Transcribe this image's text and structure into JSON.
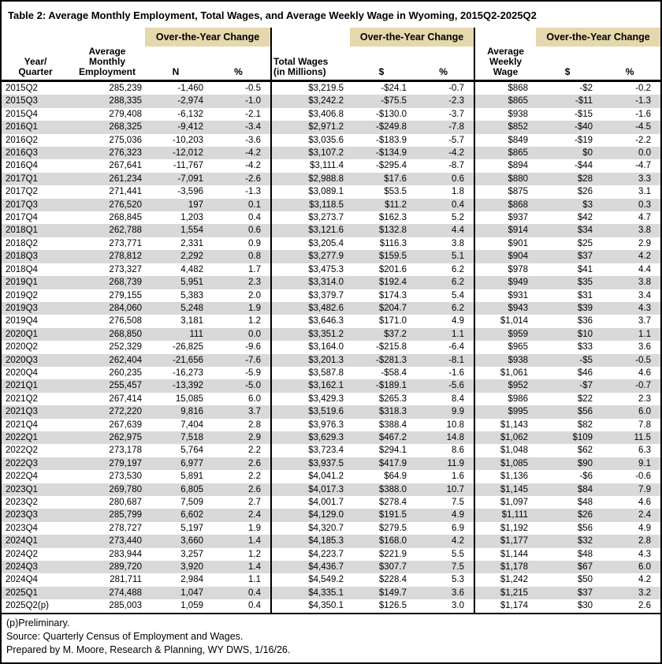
{
  "title": "Table 2: Average Monthly Employment, Total Wages, and Average Weekly Wage in Wyoming, 2015Q2-2025Q2",
  "colors": {
    "group_header_bg": "#e5d8ad",
    "row_stripe": "#d9d9d9",
    "border": "#000000"
  },
  "table": {
    "group_label": "Over-the-Year Change",
    "columns": [
      "Year/\nQuarter",
      "Average\nMonthly\nEmployment",
      "N",
      "%",
      "Total Wages\n(in Millions)",
      "$",
      "%",
      "Average\nWeekly\nWage",
      "$",
      "%"
    ],
    "rows": [
      [
        "2015Q2",
        "285,239",
        "-1,460",
        "-0.5",
        "$3,219.5",
        "-$24.1",
        "-0.7",
        "$868",
        "-$2",
        "-0.2"
      ],
      [
        "2015Q3",
        "288,335",
        "-2,974",
        "-1.0",
        "$3,242.2",
        "-$75.5",
        "-2.3",
        "$865",
        "-$11",
        "-1.3"
      ],
      [
        "2015Q4",
        "279,408",
        "-6,132",
        "-2.1",
        "$3,406.8",
        "-$130.0",
        "-3.7",
        "$938",
        "-$15",
        "-1.6"
      ],
      [
        "2016Q1",
        "268,325",
        "-9,412",
        "-3.4",
        "$2,971.2",
        "-$249.8",
        "-7.8",
        "$852",
        "-$40",
        "-4.5"
      ],
      [
        "2016Q2",
        "275,036",
        "-10,203",
        "-3.6",
        "$3,035.6",
        "-$183.9",
        "-5.7",
        "$849",
        "-$19",
        "-2.2"
      ],
      [
        "2016Q3",
        "276,323",
        "-12,012",
        "-4.2",
        "$3,107.2",
        "-$134.9",
        "-4.2",
        "$865",
        "$0",
        "0.0"
      ],
      [
        "2016Q4",
        "267,641",
        "-11,767",
        "-4.2",
        "$3,111.4",
        "-$295.4",
        "-8.7",
        "$894",
        "-$44",
        "-4.7"
      ],
      [
        "2017Q1",
        "261,234",
        "-7,091",
        "-2.6",
        "$2,988.8",
        "$17.6",
        "0.6",
        "$880",
        "$28",
        "3.3"
      ],
      [
        "2017Q2",
        "271,441",
        "-3,596",
        "-1.3",
        "$3,089.1",
        "$53.5",
        "1.8",
        "$875",
        "$26",
        "3.1"
      ],
      [
        "2017Q3",
        "276,520",
        "197",
        "0.1",
        "$3,118.5",
        "$11.2",
        "0.4",
        "$868",
        "$3",
        "0.3"
      ],
      [
        "2017Q4",
        "268,845",
        "1,203",
        "0.4",
        "$3,273.7",
        "$162.3",
        "5.2",
        "$937",
        "$42",
        "4.7"
      ],
      [
        "2018Q1",
        "262,788",
        "1,554",
        "0.6",
        "$3,121.6",
        "$132.8",
        "4.4",
        "$914",
        "$34",
        "3.8"
      ],
      [
        "2018Q2",
        "273,771",
        "2,331",
        "0.9",
        "$3,205.4",
        "$116.3",
        "3.8",
        "$901",
        "$25",
        "2.9"
      ],
      [
        "2018Q3",
        "278,812",
        "2,292",
        "0.8",
        "$3,277.9",
        "$159.5",
        "5.1",
        "$904",
        "$37",
        "4.2"
      ],
      [
        "2018Q4",
        "273,327",
        "4,482",
        "1.7",
        "$3,475.3",
        "$201.6",
        "6.2",
        "$978",
        "$41",
        "4.4"
      ],
      [
        "2019Q1",
        "268,739",
        "5,951",
        "2.3",
        "$3,314.0",
        "$192.4",
        "6.2",
        "$949",
        "$35",
        "3.8"
      ],
      [
        "2019Q2",
        "279,155",
        "5,383",
        "2.0",
        "$3,379.7",
        "$174.3",
        "5.4",
        "$931",
        "$31",
        "3.4"
      ],
      [
        "2019Q3",
        "284,060",
        "5,248",
        "1.9",
        "$3,482.6",
        "$204.7",
        "6.2",
        "$943",
        "$39",
        "4.3"
      ],
      [
        "2019Q4",
        "276,508",
        "3,181",
        "1.2",
        "$3,646.3",
        "$171.0",
        "4.9",
        "$1,014",
        "$36",
        "3.7"
      ],
      [
        "2020Q1",
        "268,850",
        "111",
        "0.0",
        "$3,351.2",
        "$37.2",
        "1.1",
        "$959",
        "$10",
        "1.1"
      ],
      [
        "2020Q2",
        "252,329",
        "-26,825",
        "-9.6",
        "$3,164.0",
        "-$215.8",
        "-6.4",
        "$965",
        "$33",
        "3.6"
      ],
      [
        "2020Q3",
        "262,404",
        "-21,656",
        "-7.6",
        "$3,201.3",
        "-$281.3",
        "-8.1",
        "$938",
        "-$5",
        "-0.5"
      ],
      [
        "2020Q4",
        "260,235",
        "-16,273",
        "-5.9",
        "$3,587.8",
        "-$58.4",
        "-1.6",
        "$1,061",
        "$46",
        "4.6"
      ],
      [
        "2021Q1",
        "255,457",
        "-13,392",
        "-5.0",
        "$3,162.1",
        "-$189.1",
        "-5.6",
        "$952",
        "-$7",
        "-0.7"
      ],
      [
        "2021Q2",
        "267,414",
        "15,085",
        "6.0",
        "$3,429.3",
        "$265.3",
        "8.4",
        "$986",
        "$22",
        "2.3"
      ],
      [
        "2021Q3",
        "272,220",
        "9,816",
        "3.7",
        "$3,519.6",
        "$318.3",
        "9.9",
        "$995",
        "$56",
        "6.0"
      ],
      [
        "2021Q4",
        "267,639",
        "7,404",
        "2.8",
        "$3,976.3",
        "$388.4",
        "10.8",
        "$1,143",
        "$82",
        "7.8"
      ],
      [
        "2022Q1",
        "262,975",
        "7,518",
        "2.9",
        "$3,629.3",
        "$467.2",
        "14.8",
        "$1,062",
        "$109",
        "11.5"
      ],
      [
        "2022Q2",
        "273,178",
        "5,764",
        "2.2",
        "$3,723.4",
        "$294.1",
        "8.6",
        "$1,048",
        "$62",
        "6.3"
      ],
      [
        "2022Q3",
        "279,197",
        "6,977",
        "2.6",
        "$3,937.5",
        "$417.9",
        "11.9",
        "$1,085",
        "$90",
        "9.1"
      ],
      [
        "2022Q4",
        "273,530",
        "5,891",
        "2.2",
        "$4,041.2",
        "$64.9",
        "1.6",
        "$1,136",
        "-$6",
        "-0.6"
      ],
      [
        "2023Q1",
        "269,780",
        "6,805",
        "2.6",
        "$4,017.3",
        "$388.0",
        "10.7",
        "$1,145",
        "$84",
        "7.9"
      ],
      [
        "2023Q2",
        "280,687",
        "7,509",
        "2.7",
        "$4,001.7",
        "$278.4",
        "7.5",
        "$1,097",
        "$48",
        "4.6"
      ],
      [
        "2023Q3",
        "285,799",
        "6,602",
        "2.4",
        "$4,129.0",
        "$191.5",
        "4.9",
        "$1,111",
        "$26",
        "2.4"
      ],
      [
        "2023Q4",
        "278,727",
        "5,197",
        "1.9",
        "$4,320.7",
        "$279.5",
        "6.9",
        "$1,192",
        "$56",
        "4.9"
      ],
      [
        "2024Q1",
        "273,440",
        "3,660",
        "1.4",
        "$4,185.3",
        "$168.0",
        "4.2",
        "$1,177",
        "$32",
        "2.8"
      ],
      [
        "2024Q2",
        "283,944",
        "3,257",
        "1.2",
        "$4,223.7",
        "$221.9",
        "5.5",
        "$1,144",
        "$48",
        "4.3"
      ],
      [
        "2024Q3",
        "289,720",
        "3,920",
        "1.4",
        "$4,436.7",
        "$307.7",
        "7.5",
        "$1,178",
        "$67",
        "6.0"
      ],
      [
        "2024Q4",
        "281,711",
        "2,984",
        "1.1",
        "$4,549.2",
        "$228.4",
        "5.3",
        "$1,242",
        "$50",
        "4.2"
      ],
      [
        "2025Q1",
        "274,488",
        "1,047",
        "0.4",
        "$4,335.1",
        "$149.7",
        "3.6",
        "$1,215",
        "$37",
        "3.2"
      ],
      [
        "2025Q2(p)",
        "285,003",
        "1,059",
        "0.4",
        "$4,350.1",
        "$126.5",
        "3.0",
        "$1,174",
        "$30",
        "2.6"
      ]
    ]
  },
  "footnotes": {
    "preliminary": "(p)Preliminary.",
    "source": "Source: Quarterly Census of Employment and Wages.",
    "prepared": "Prepared by M. Moore, Research & Planning, WY DWS, 1/16/26."
  }
}
